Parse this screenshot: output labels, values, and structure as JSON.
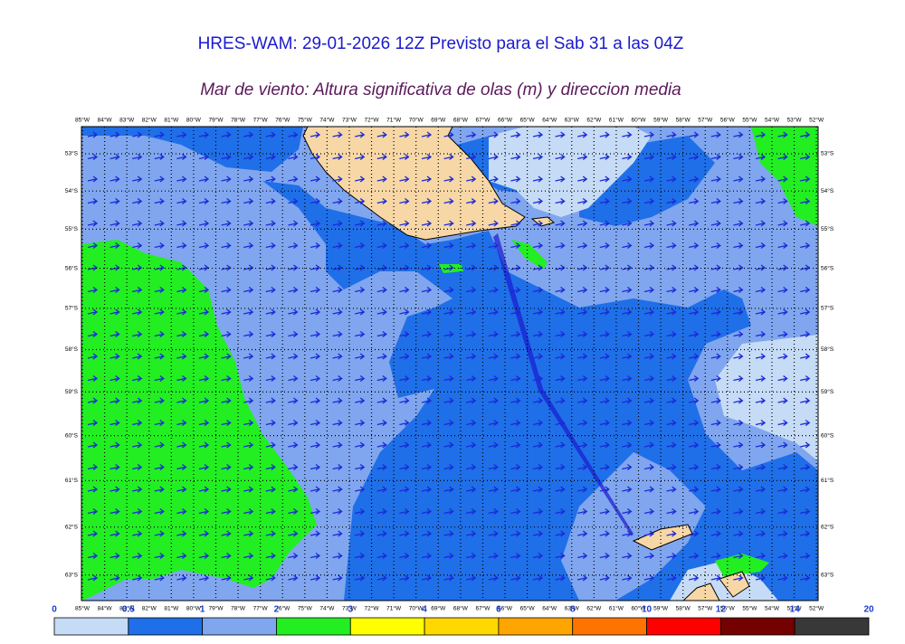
{
  "header": {
    "title": "HRES-WAM: 29-01-2026 12Z Previsto para el Sab 31 a las 04Z",
    "subtitle": "Mar de viento: Altura significativa de olas (m) y direccion media"
  },
  "map": {
    "lon_ticks": [
      {
        "value": 85,
        "label": "85°W"
      },
      {
        "value": 84,
        "label": "84°W"
      },
      {
        "value": 83,
        "label": "83°W"
      },
      {
        "value": 82,
        "label": "82°W"
      },
      {
        "value": 81,
        "label": "81°W"
      },
      {
        "value": 80,
        "label": "80°W"
      },
      {
        "value": 79,
        "label": "79°W"
      },
      {
        "value": 78,
        "label": "78°W"
      },
      {
        "value": 77,
        "label": "77°W"
      },
      {
        "value": 76,
        "label": "76°W"
      },
      {
        "value": 75,
        "label": "75°W"
      },
      {
        "value": 74,
        "label": "74°W"
      },
      {
        "value": 73,
        "label": "73°W"
      },
      {
        "value": 72,
        "label": "72°W"
      },
      {
        "value": 71,
        "label": "71°W"
      },
      {
        "value": 70,
        "label": "70°W"
      },
      {
        "value": 69,
        "label": "69°W"
      },
      {
        "value": 68,
        "label": "68°W"
      },
      {
        "value": 67,
        "label": "67°W"
      },
      {
        "value": 66,
        "label": "66°W"
      },
      {
        "value": 65,
        "label": "65°W"
      },
      {
        "value": 64,
        "label": "64°W"
      },
      {
        "value": 63,
        "label": "63°W"
      },
      {
        "value": 62,
        "label": "62°W"
      },
      {
        "value": 61,
        "label": "61°W"
      },
      {
        "value": 60,
        "label": "60°W"
      },
      {
        "value": 59,
        "label": "59°W"
      },
      {
        "value": 58,
        "label": "58°W"
      },
      {
        "value": 57,
        "label": "57°W"
      },
      {
        "value": 56,
        "label": "56°W"
      },
      {
        "value": 55,
        "label": "55°W"
      },
      {
        "value": 54,
        "label": "54°W"
      },
      {
        "value": 53,
        "label": "53°W"
      },
      {
        "value": 52,
        "label": "52°W"
      }
    ],
    "lat_ticks": [
      {
        "value": 53,
        "label": "53°S"
      },
      {
        "value": 54,
        "label": "54°S"
      },
      {
        "value": 55,
        "label": "55°S"
      },
      {
        "value": 56,
        "label": "56°S"
      },
      {
        "value": 57,
        "label": "57°S"
      },
      {
        "value": 58,
        "label": "58°S"
      },
      {
        "value": 59,
        "label": "59°S"
      },
      {
        "value": 60,
        "label": "60°S"
      },
      {
        "value": 61,
        "label": "61°S"
      },
      {
        "value": 62,
        "label": "62°S"
      },
      {
        "value": 63,
        "label": "63°S"
      }
    ]
  },
  "colorbar": {
    "ticks": [
      0,
      0.5,
      1,
      2,
      3,
      4,
      6,
      8,
      10,
      12,
      14,
      20
    ],
    "colors": [
      "#c6dbf5",
      "#1f6fe8",
      "#80a6ef",
      "#22ee22",
      "#ffff00",
      "#ffd800",
      "#ffa500",
      "#ff7400",
      "#ff0000",
      "#740000",
      "#383838"
    ]
  }
}
